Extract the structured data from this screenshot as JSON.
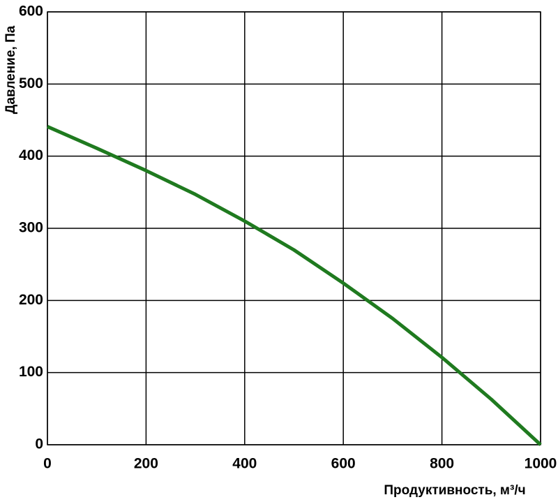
{
  "chart_data": {
    "type": "line",
    "x_label": "Продуктивность, м³/ч",
    "y_label": "Давление, Па",
    "x": [
      0,
      100,
      200,
      300,
      400,
      500,
      600,
      700,
      800,
      900,
      1000
    ],
    "series": [
      {
        "color": "#1f7a1f",
        "values": [
          441,
          411,
          380,
          347,
          310,
          270,
          224,
          175,
          121,
          63,
          0
        ]
      }
    ],
    "xlim": [
      0,
      1000
    ],
    "xticks": [
      0,
      200,
      400,
      600,
      800,
      1000
    ],
    "ylim": [
      0,
      600
    ],
    "yticks": [
      0,
      100,
      200,
      300,
      400,
      500,
      600
    ],
    "grid": true
  }
}
